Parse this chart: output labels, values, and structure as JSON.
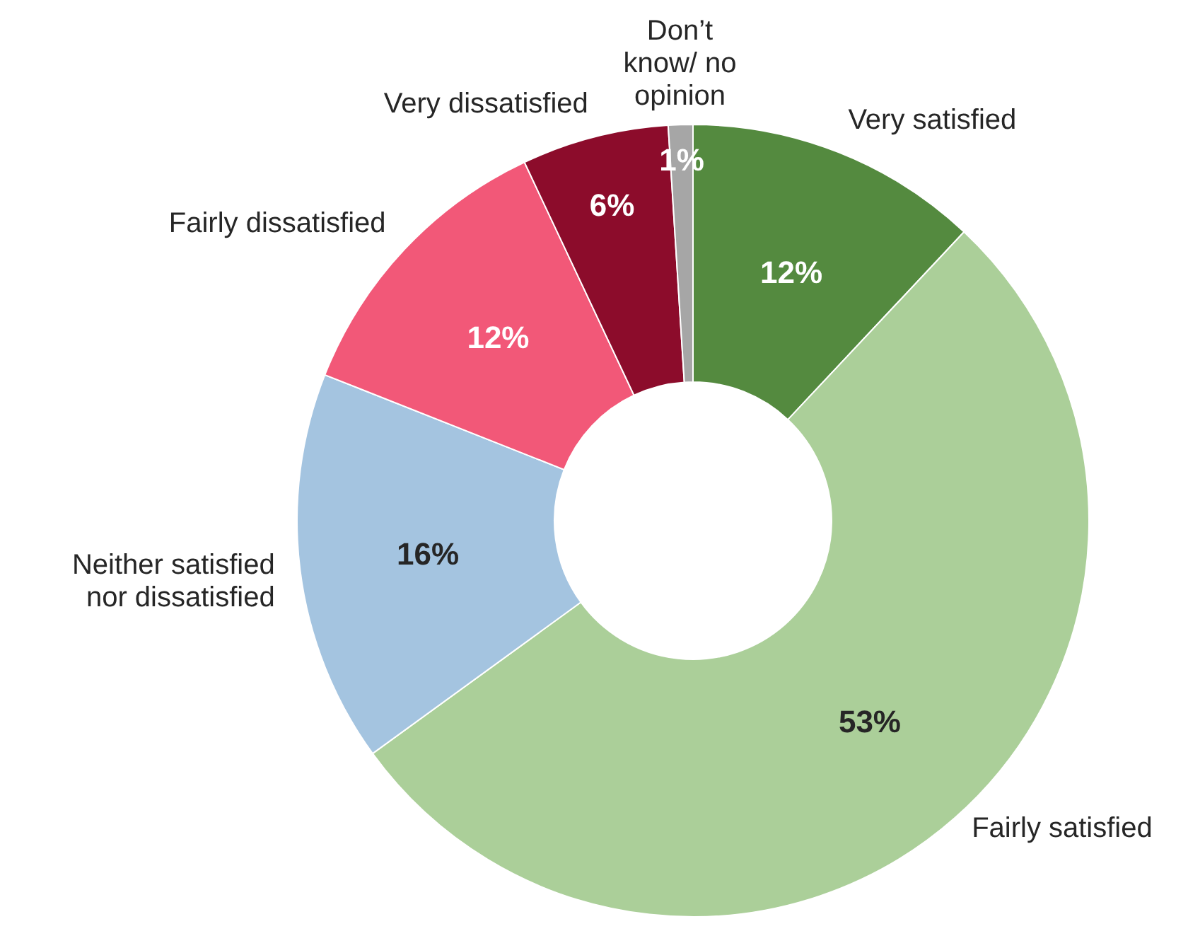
{
  "chart_data": {
    "type": "donut",
    "categories": [
      "Very satisfied",
      "Fairly satisfied",
      "Neither satisfied nor dissatisfied",
      "Fairly dissatisfied",
      "Very dissatisfied",
      "Don’t know/ no opinion"
    ],
    "values": [
      12,
      53,
      16,
      12,
      6,
      1
    ],
    "colors": [
      "#548a3f",
      "#abcf99",
      "#a4c4e0",
      "#f25878",
      "#8c0c2b",
      "#a6a6a6"
    ],
    "value_labels": [
      "12%",
      "53%",
      "16%",
      "12%",
      "6%",
      "1%"
    ]
  }
}
